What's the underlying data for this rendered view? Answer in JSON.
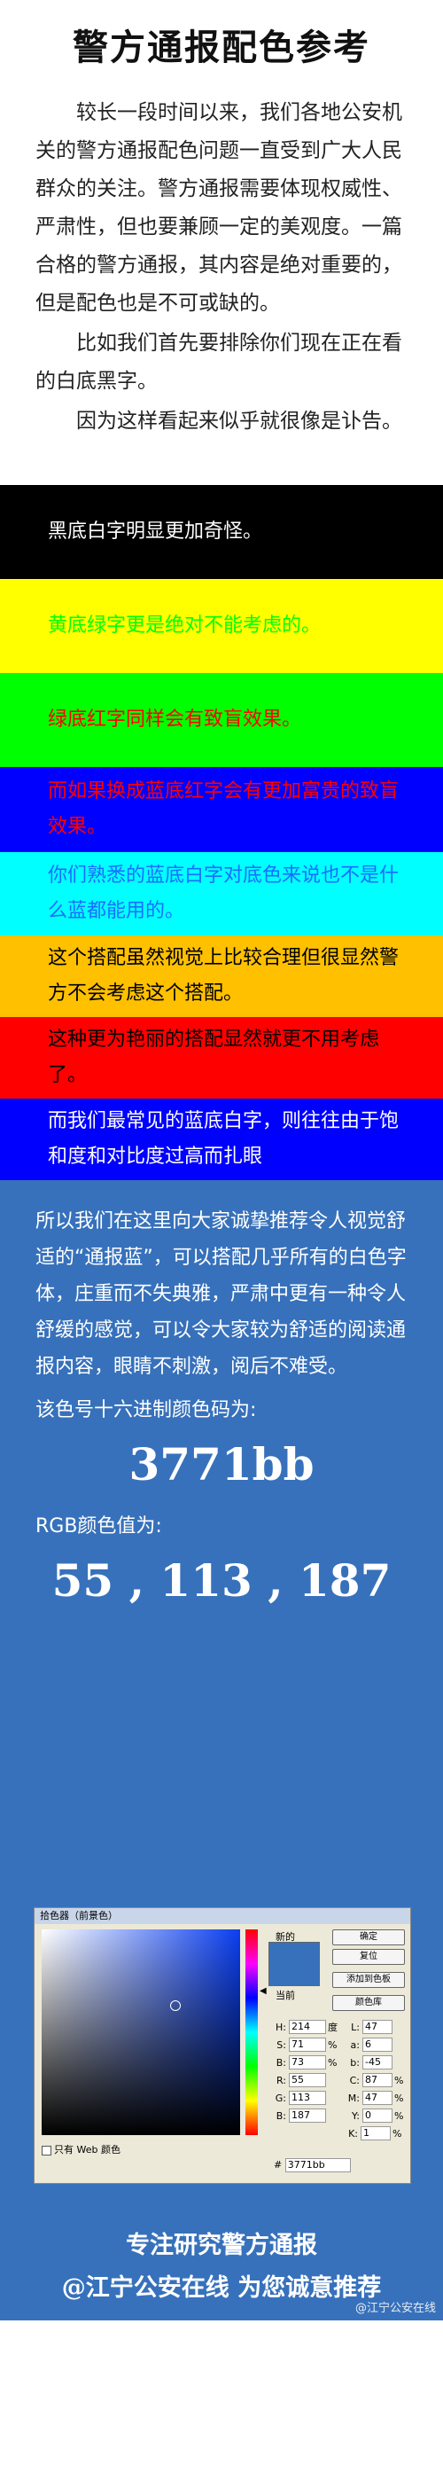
{
  "title": "警方通报配色参考",
  "intro": [
    "较长一段时间以来，我们各地公安机关的警方通报配色问题一直受到广大人民群众的关注。警方通报需要体现权威性、严肃性，但也要兼顾一定的美观度。一篇合格的警方通报，其内容是绝对重要的，但是配色也是不可或缺的。",
    "比如我们首先要排除你们现在正在看的白底黑字。",
    "因为这样看起来似乎就很像是讣告。"
  ],
  "bands": [
    {
      "text": "黑底白字明显更加奇怪。",
      "bg": "#000000",
      "fg": "#ffffff"
    },
    {
      "text": "黄底绿字更是绝对不能考虑的。",
      "bg": "#ffff00",
      "fg": "#00ff00"
    },
    {
      "text": "绿底红字同样会有致盲效果。",
      "bg": "#00ff00",
      "fg": "#ff0000"
    },
    {
      "text": "而如果换成蓝底红字会有更加富贵的致盲效果。",
      "bg": "#0000ff",
      "fg": "#ff0000"
    },
    {
      "text": "你们熟悉的蓝底白字对底色来说也不是什么蓝都能用的。",
      "bg": "#00ffff",
      "fg": "#1a6dff"
    },
    {
      "text": "这个搭配虽然视觉上比较合理但很显然警方不会考虑这个搭配。",
      "bg": "#ffc000",
      "fg": "#000000"
    },
    {
      "text": "这种更为艳丽的搭配显然就更不用考虑了。",
      "bg": "#ff0000",
      "fg": "#000000"
    },
    {
      "text": "而我们最常见的蓝底白字，则往往由于饱和度和对比度过高而扎眼",
      "bg": "#0000ff",
      "fg": "#ffffff"
    }
  ],
  "recommend": {
    "para": "所以我们在这里向大家诚挚推荐令人视觉舒适的“通报蓝”，可以搭配几乎所有的白色字体，庄重而不失典雅，严肃中更有一种令人舒缓的感觉，可以令大家较为舒适的阅读通报内容，眼睛不刺激，阅后不难受。",
    "hex_label": "该色号十六进制颜色码为:",
    "hex_value": "3771bb",
    "rgb_label": "RGB颜色值为:",
    "rgb_value": "55 , 113 , 187",
    "color": "#3771bb"
  },
  "picker": {
    "title": "拾色器（前景色）",
    "new_label": "新的",
    "current_label": "当前",
    "ok": "确定",
    "reset": "复位",
    "add_swatch": "添加到色板",
    "color_library": "颜色库",
    "web_only": "只有 Web 颜色",
    "hsb": [
      {
        "k": "H:",
        "v": "214",
        "u": "度"
      },
      {
        "k": "S:",
        "v": "71",
        "u": "%"
      },
      {
        "k": "B:",
        "v": "73",
        "u": "%"
      }
    ],
    "rgb": [
      {
        "k": "R:",
        "v": "55"
      },
      {
        "k": "G:",
        "v": "113"
      },
      {
        "k": "B:",
        "v": "187"
      }
    ],
    "lab": [
      {
        "k": "L:",
        "v": "47"
      },
      {
        "k": "a:",
        "v": "6"
      },
      {
        "k": "b:",
        "v": "-45"
      }
    ],
    "cmyk": [
      {
        "k": "C:",
        "v": "87",
        "u": "%"
      },
      {
        "k": "M:",
        "v": "47",
        "u": "%"
      },
      {
        "k": "Y:",
        "v": "0",
        "u": "%"
      },
      {
        "k": "K:",
        "v": "1",
        "u": "%"
      }
    ],
    "hex_prefix": "#",
    "hex": "3771bb"
  },
  "footer": {
    "line1": "专注研究警方通报",
    "line2": "@江宁公安在线 为您诚意推荐"
  },
  "watermark": "@江宁公安在线"
}
